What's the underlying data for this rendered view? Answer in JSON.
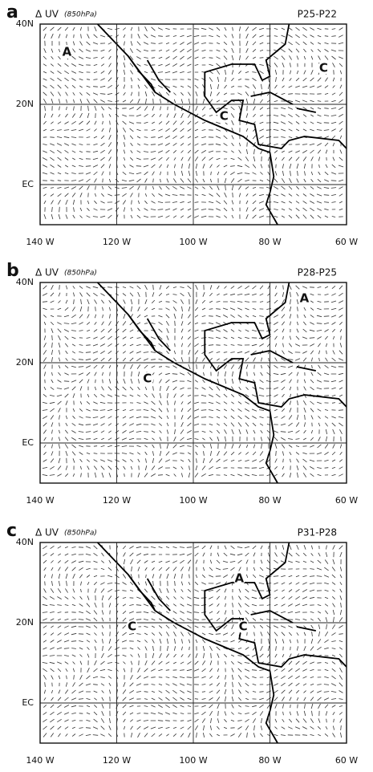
{
  "panels": [
    {
      "letter": "a",
      "title": "Δ UV",
      "level": "(850hPa)",
      "period": "P25-P22",
      "x_labels": [
        "140 W",
        "120 W",
        "100 W",
        "80 W",
        "60 W"
      ],
      "y_labels": [
        "40N",
        "20N",
        "EC"
      ],
      "markers": [
        "A",
        "C",
        "C"
      ]
    },
    {
      "letter": "b",
      "title": "Δ UV",
      "level": "(850hPa)",
      "period": "P28-P25",
      "x_labels": [
        "140 W",
        "120 W",
        "100 W",
        "80 W",
        "60 W"
      ],
      "y_labels": [
        "40N",
        "20N",
        "EC"
      ],
      "markers": [
        "A",
        "C"
      ]
    },
    {
      "letter": "c",
      "title": "Δ UV",
      "level": "(850hPa)",
      "period": "P31-P28",
      "x_labels": [
        "140 W",
        "120 W",
        "100 W",
        "80 W",
        "60 W"
      ],
      "y_labels": [
        "40N",
        "20N",
        "EC"
      ],
      "markers": [
        "A",
        "C",
        "C"
      ]
    }
  ]
}
